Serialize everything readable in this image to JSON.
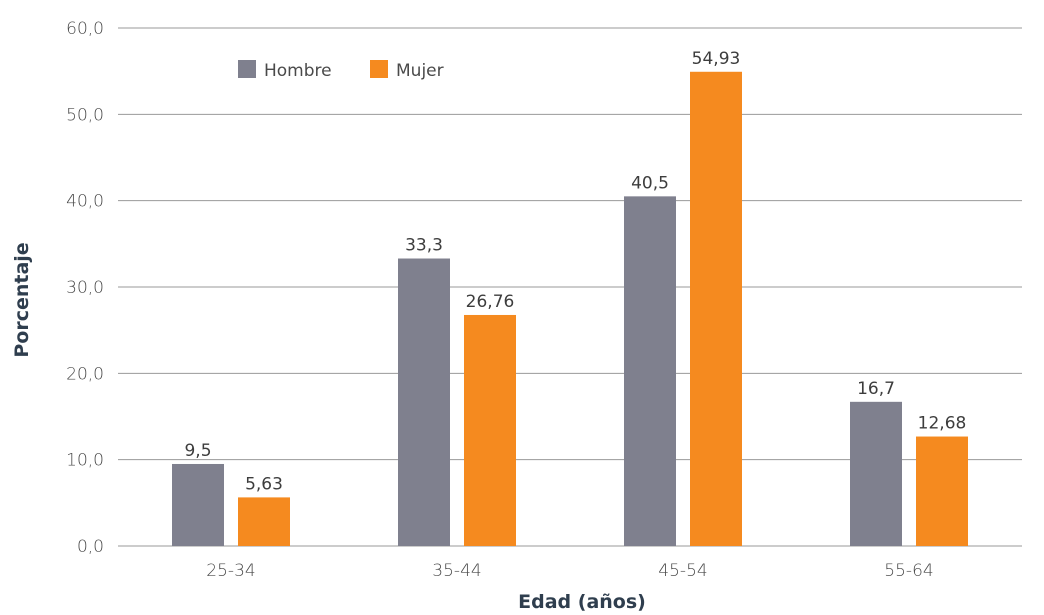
{
  "chart_data": {
    "type": "bar",
    "categories": [
      "25-34",
      "35-44",
      "45-54",
      "55-64"
    ],
    "series": [
      {
        "name": "Hombre",
        "values": [
          9.5,
          33.3,
          40.5,
          16.7
        ],
        "labels": [
          "9,5",
          "33,3",
          "40,5",
          "16,7"
        ],
        "color": "#7f808e"
      },
      {
        "name": "Mujer",
        "values": [
          5.63,
          26.76,
          54.93,
          12.68
        ],
        "labels": [
          "5,63",
          "26,76",
          "54,93",
          "12,68"
        ],
        "color": "#f58a1f"
      }
    ],
    "xlabel": "Edad (años)",
    "ylabel": "Porcentaje",
    "ylim": [
      0,
      60
    ],
    "yticks": [
      0,
      10,
      20,
      30,
      40,
      50,
      60
    ],
    "ytick_labels": [
      "0,0",
      "10,0",
      "20,0",
      "30,0",
      "40,0",
      "50,0",
      "60,0"
    ],
    "grid": true,
    "legend_position": "top-left"
  }
}
